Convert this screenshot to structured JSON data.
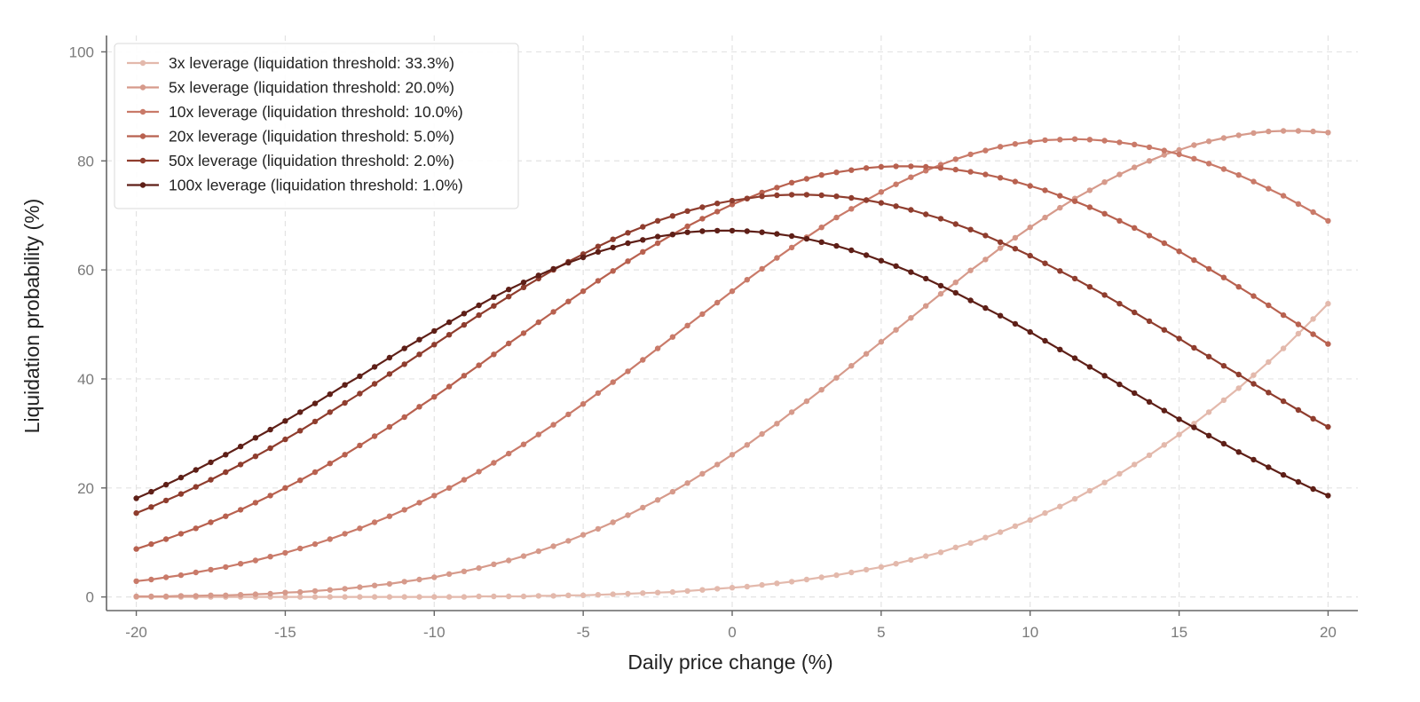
{
  "chart_data": {
    "type": "line",
    "title": "",
    "xlabel": "Daily price change (%)",
    "ylabel": "Liquidation probability (%)",
    "xlim": [
      -21,
      21
    ],
    "ylim": [
      -2.5,
      103
    ],
    "xticks": [
      -20,
      -15,
      -10,
      -5,
      0,
      5,
      10,
      15,
      20
    ],
    "xtick_labels": [
      "-20",
      "-15",
      "-10",
      "-5",
      "0",
      "5",
      "10",
      "15",
      "20"
    ],
    "yticks": [
      0,
      20,
      40,
      60,
      80,
      100
    ],
    "ytick_labels": [
      "0",
      "20",
      "40",
      "60",
      "80",
      "100"
    ],
    "grid": true,
    "legend_position": "top-left",
    "x": [
      -20.0,
      -19.5,
      -19.0,
      -18.5,
      -18.0,
      -17.5,
      -17.0,
      -16.5,
      -16.0,
      -15.5,
      -15.0,
      -14.5,
      -14.0,
      -13.5,
      -13.0,
      -12.5,
      -12.0,
      -11.5,
      -11.0,
      -10.5,
      -10.0,
      -9.5,
      -9.0,
      -8.5,
      -8.0,
      -7.5,
      -7.0,
      -6.5,
      -6.0,
      -5.5,
      -5.0,
      -4.5,
      -4.0,
      -3.5,
      -3.0,
      -2.5,
      -2.0,
      -1.5,
      -1.0,
      -0.5,
      0.0,
      0.5,
      1.0,
      1.5,
      2.0,
      2.5,
      3.0,
      3.5,
      4.0,
      4.5,
      5.0,
      5.5,
      6.0,
      6.5,
      7.0,
      7.5,
      8.0,
      8.5,
      9.0,
      9.5,
      10.0,
      10.5,
      11.0,
      11.5,
      12.0,
      12.5,
      13.0,
      13.5,
      14.0,
      14.5,
      15.0,
      15.5,
      16.0,
      16.5,
      17.0,
      17.5,
      18.0,
      18.5,
      19.0,
      19.5,
      20.0
    ],
    "series": [
      {
        "name": "3x leverage (liquidation threshold: 33.3%)",
        "color": "#e3b9ac",
        "values": [
          0.0,
          0.0,
          0.0,
          0.0,
          0.0,
          0.0,
          0.0,
          0.0,
          0.0,
          0.0,
          0.0,
          0.0,
          0.0,
          0.0,
          0.0,
          0.0,
          0.0,
          0.0,
          0.0,
          0.0,
          0.0,
          0.0,
          0.0,
          0.1,
          0.1,
          0.1,
          0.1,
          0.2,
          0.2,
          0.3,
          0.3,
          0.4,
          0.5,
          0.6,
          0.7,
          0.8,
          0.9,
          1.1,
          1.3,
          1.5,
          1.7,
          1.9,
          2.2,
          2.5,
          2.8,
          3.2,
          3.6,
          4.0,
          4.5,
          5.0,
          5.5,
          6.1,
          6.8,
          7.5,
          8.2,
          9.1,
          9.9,
          10.9,
          11.9,
          13.0,
          14.1,
          15.4,
          16.6,
          18.0,
          19.5,
          21.0,
          22.6,
          24.3,
          26.0,
          27.9,
          29.8,
          31.8,
          33.9,
          36.1,
          38.3,
          40.7,
          43.1,
          45.6,
          48.3,
          51.0,
          53.8
        ]
      },
      {
        "name": "5x leverage (liquidation threshold: 20.0%)",
        "color": "#d69a8b",
        "values": [
          0.1,
          0.1,
          0.1,
          0.2,
          0.2,
          0.3,
          0.3,
          0.4,
          0.5,
          0.6,
          0.8,
          0.9,
          1.1,
          1.3,
          1.5,
          1.8,
          2.1,
          2.4,
          2.8,
          3.2,
          3.6,
          4.2,
          4.7,
          5.3,
          6.0,
          6.7,
          7.5,
          8.4,
          9.3,
          10.3,
          11.4,
          12.5,
          13.7,
          15.0,
          16.4,
          17.8,
          19.3,
          20.9,
          22.6,
          24.3,
          26.1,
          27.9,
          29.9,
          31.8,
          33.9,
          35.9,
          38.0,
          40.2,
          42.4,
          44.6,
          46.8,
          49.0,
          51.2,
          53.4,
          55.6,
          57.7,
          59.9,
          61.9,
          64.0,
          65.9,
          67.8,
          69.6,
          71.4,
          73.1,
          74.6,
          76.1,
          77.5,
          78.8,
          80.0,
          81.1,
          82.0,
          82.9,
          83.6,
          84.2,
          84.7,
          85.1,
          85.4,
          85.5,
          85.5,
          85.4,
          85.2
        ]
      },
      {
        "name": "10x leverage (liquidation threshold: 10.0%)",
        "color": "#c97a69",
        "values": [
          2.9,
          3.2,
          3.6,
          4.0,
          4.5,
          5.0,
          5.5,
          6.1,
          6.7,
          7.4,
          8.1,
          8.9,
          9.7,
          10.6,
          11.6,
          12.6,
          13.7,
          14.8,
          16.0,
          17.3,
          18.6,
          20.0,
          21.5,
          23.0,
          24.6,
          26.3,
          28.0,
          29.8,
          31.6,
          33.5,
          35.4,
          37.4,
          39.4,
          41.4,
          43.5,
          45.6,
          47.7,
          49.8,
          51.9,
          54.0,
          56.1,
          58.2,
          60.2,
          62.2,
          64.1,
          66.0,
          67.8,
          69.6,
          71.2,
          72.8,
          74.3,
          75.7,
          77.0,
          78.2,
          79.3,
          80.3,
          81.2,
          81.9,
          82.6,
          83.1,
          83.5,
          83.8,
          83.9,
          84.0,
          83.9,
          83.7,
          83.4,
          83.0,
          82.5,
          81.9,
          81.2,
          80.4,
          79.5,
          78.5,
          77.4,
          76.2,
          74.9,
          73.6,
          72.1,
          70.6,
          69.0
        ]
      },
      {
        "name": "20x leverage (liquidation threshold: 5.0%)",
        "color": "#b8614f",
        "values": [
          8.8,
          9.7,
          10.6,
          11.6,
          12.6,
          13.7,
          14.8,
          16.0,
          17.3,
          18.6,
          20.0,
          21.4,
          22.9,
          24.5,
          26.1,
          27.8,
          29.5,
          31.2,
          33.0,
          34.9,
          36.7,
          38.6,
          40.6,
          42.5,
          44.5,
          46.5,
          48.4,
          50.4,
          52.3,
          54.2,
          56.1,
          58.0,
          59.8,
          61.6,
          63.3,
          64.9,
          66.5,
          68.0,
          69.4,
          70.7,
          72.0,
          73.1,
          74.2,
          75.1,
          76.0,
          76.7,
          77.4,
          77.9,
          78.3,
          78.7,
          78.9,
          79.0,
          79.0,
          78.9,
          78.7,
          78.4,
          78.0,
          77.5,
          76.9,
          76.2,
          75.4,
          74.6,
          73.6,
          72.6,
          71.5,
          70.3,
          69.0,
          67.7,
          66.3,
          64.9,
          63.4,
          61.8,
          60.2,
          58.6,
          56.9,
          55.2,
          53.5,
          51.7,
          50.0,
          48.2,
          46.4
        ]
      },
      {
        "name": "50x leverage (liquidation threshold: 2.0%)",
        "color": "#8f3d2e",
        "values": [
          15.4,
          16.5,
          17.7,
          18.9,
          20.2,
          21.5,
          22.9,
          24.3,
          25.8,
          27.3,
          28.9,
          30.5,
          32.2,
          33.9,
          35.6,
          37.3,
          39.1,
          40.9,
          42.7,
          44.5,
          46.3,
          48.1,
          49.9,
          51.7,
          53.4,
          55.1,
          56.8,
          58.4,
          60.0,
          61.5,
          62.9,
          64.3,
          65.6,
          66.8,
          67.9,
          69.0,
          69.9,
          70.8,
          71.5,
          72.2,
          72.7,
          73.1,
          73.5,
          73.7,
          73.8,
          73.8,
          73.7,
          73.5,
          73.2,
          72.8,
          72.3,
          71.7,
          71.0,
          70.2,
          69.4,
          68.4,
          67.4,
          66.3,
          65.1,
          63.9,
          62.6,
          61.2,
          59.8,
          58.4,
          56.9,
          55.4,
          53.8,
          52.2,
          50.6,
          49.0,
          47.4,
          45.7,
          44.1,
          42.4,
          40.8,
          39.1,
          37.5,
          35.9,
          34.3,
          32.7,
          31.2
        ]
      },
      {
        "name": "100x leverage (liquidation threshold: 1.0%)",
        "color": "#5e1f17",
        "values": [
          18.1,
          19.3,
          20.6,
          21.9,
          23.3,
          24.7,
          26.1,
          27.6,
          29.2,
          30.7,
          32.3,
          33.9,
          35.5,
          37.2,
          38.9,
          40.5,
          42.2,
          43.9,
          45.6,
          47.2,
          48.8,
          50.4,
          52.0,
          53.5,
          55.0,
          56.4,
          57.7,
          59.0,
          60.2,
          61.3,
          62.3,
          63.3,
          64.1,
          64.9,
          65.5,
          66.1,
          66.5,
          66.9,
          67.1,
          67.2,
          67.2,
          67.1,
          66.9,
          66.6,
          66.2,
          65.7,
          65.1,
          64.4,
          63.6,
          62.7,
          61.7,
          60.7,
          59.6,
          58.4,
          57.1,
          55.8,
          54.4,
          53.0,
          51.6,
          50.1,
          48.6,
          47.0,
          45.4,
          43.8,
          42.2,
          40.6,
          39.0,
          37.4,
          35.8,
          34.2,
          32.6,
          31.1,
          29.6,
          28.1,
          26.6,
          25.2,
          23.8,
          22.4,
          21.1,
          19.8,
          18.6
        ]
      }
    ]
  }
}
